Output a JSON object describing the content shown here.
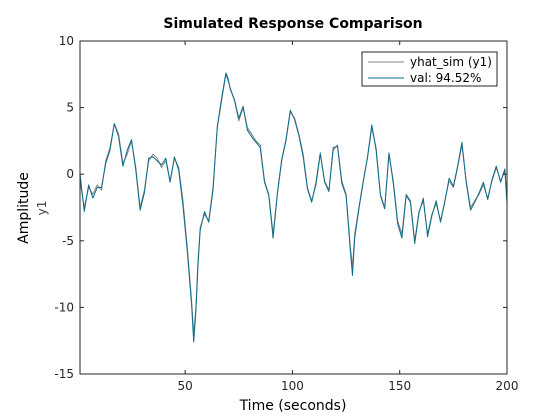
{
  "chart_data": {
    "type": "line",
    "title": "Simulated Response Comparison",
    "xlabel": "Time (seconds)",
    "ylabel": "Amplitude",
    "ylabel_sub": "y1",
    "xlim": [
      1,
      200
    ],
    "ylim": [
      -15,
      10
    ],
    "xticks": [
      50,
      100,
      150,
      200
    ],
    "yticks": [
      -15,
      -10,
      -5,
      0,
      5,
      10
    ],
    "grid": false,
    "legend": {
      "placement": "top-right"
    },
    "series": [
      {
        "name": "yhat_sim (y1)",
        "color": "#808080",
        "x": [
          1,
          3,
          5,
          7,
          9,
          11,
          13,
          15,
          17,
          19,
          21,
          23,
          25,
          27,
          29,
          31,
          33,
          35,
          37,
          39,
          41,
          43,
          45,
          47,
          49,
          51,
          53,
          54,
          55,
          56,
          57,
          59,
          61,
          63,
          65,
          67,
          69,
          70,
          71,
          73,
          75,
          77,
          79,
          81,
          83,
          85,
          87,
          89,
          91,
          93,
          95,
          97,
          99,
          101,
          103,
          105,
          107,
          109,
          111,
          113,
          115,
          117,
          119,
          121,
          123,
          125,
          127,
          128,
          129,
          131,
          133,
          135,
          137,
          139,
          141,
          143,
          145,
          147,
          149,
          151,
          153,
          155,
          157,
          159,
          161,
          163,
          165,
          167,
          169,
          171,
          173,
          175,
          177,
          179,
          181,
          183,
          185,
          187,
          189,
          191,
          193,
          195,
          197,
          199,
          200
        ],
        "y": [
          -0.5,
          -2.5,
          -1.0,
          -1.5,
          -0.8,
          -1.2,
          1.0,
          2.0,
          3.8,
          3.0,
          0.8,
          1.5,
          2.5,
          0.5,
          -2.5,
          -1.2,
          1.0,
          1.5,
          1.2,
          0.5,
          1.0,
          -0.5,
          1.2,
          0.5,
          -2.0,
          -5.5,
          -9.5,
          -12.0,
          -10.0,
          -6.5,
          -4.0,
          -3.0,
          -3.5,
          -1.0,
          3.5,
          5.5,
          7.5,
          7.0,
          6.5,
          5.5,
          4.0,
          5.0,
          3.5,
          3.0,
          2.5,
          2.2,
          -0.5,
          -1.5,
          -4.5,
          -1.5,
          1.0,
          2.5,
          4.7,
          4.2,
          3.0,
          1.5,
          -1.0,
          -2.0,
          -0.8,
          1.5,
          -0.5,
          -1.2,
          1.8,
          2.2,
          -0.5,
          -1.5,
          -5.5,
          -7.0,
          -4.5,
          -2.5,
          -0.5,
          1.2,
          3.5,
          2.0,
          -1.5,
          -2.5,
          1.5,
          -0.5,
          -3.5,
          -4.5,
          -1.5,
          -2.0,
          -5.0,
          -2.8,
          -2.0,
          -4.5,
          -3.0,
          -2.2,
          -3.5,
          -2.0,
          -0.5,
          -1.0,
          0.5,
          2.2,
          -0.5,
          -2.5,
          -2.0,
          -1.5,
          -0.8,
          -1.8,
          -0.5,
          0.5,
          -0.5,
          0.2,
          -2.0
        ]
      },
      {
        "name": "val: 94.52%",
        "color": "#0e6b8a",
        "x": [
          1,
          3,
          5,
          7,
          9,
          11,
          13,
          15,
          17,
          19,
          21,
          23,
          25,
          27,
          29,
          31,
          33,
          35,
          37,
          39,
          41,
          43,
          45,
          47,
          49,
          51,
          53,
          54,
          55,
          56,
          57,
          59,
          61,
          63,
          65,
          67,
          69,
          70,
          71,
          73,
          75,
          77,
          79,
          81,
          83,
          85,
          87,
          89,
          91,
          93,
          95,
          97,
          99,
          101,
          103,
          105,
          107,
          109,
          111,
          113,
          115,
          117,
          119,
          121,
          123,
          125,
          127,
          128,
          129,
          131,
          133,
          135,
          137,
          139,
          141,
          143,
          145,
          147,
          149,
          151,
          153,
          155,
          157,
          159,
          161,
          163,
          165,
          167,
          169,
          171,
          173,
          175,
          177,
          179,
          181,
          183,
          185,
          187,
          189,
          191,
          193,
          195,
          197,
          199,
          200
        ],
        "y": [
          0.0,
          -2.8,
          -0.8,
          -1.8,
          -1.0,
          -1.0,
          0.8,
          1.8,
          3.8,
          2.8,
          0.6,
          1.8,
          2.6,
          0.3,
          -2.7,
          -1.4,
          1.2,
          1.3,
          1.0,
          0.7,
          1.2,
          -0.6,
          1.3,
          0.3,
          -2.4,
          -5.8,
          -9.8,
          -12.6,
          -10.3,
          -6.8,
          -4.2,
          -2.8,
          -3.6,
          -1.2,
          3.6,
          5.7,
          7.6,
          7.2,
          6.4,
          5.6,
          4.2,
          5.1,
          3.3,
          2.8,
          2.4,
          2.0,
          -0.6,
          -1.6,
          -4.8,
          -1.4,
          1.1,
          2.6,
          4.8,
          4.1,
          2.9,
          1.3,
          -1.1,
          -2.1,
          -0.6,
          1.6,
          -0.6,
          -1.3,
          2.0,
          2.1,
          -0.7,
          -1.6,
          -5.8,
          -7.6,
          -4.8,
          -2.6,
          -0.6,
          1.3,
          3.7,
          1.8,
          -1.6,
          -2.6,
          1.6,
          -0.7,
          -3.7,
          -4.8,
          -1.6,
          -2.1,
          -5.2,
          -2.9,
          -1.8,
          -4.7,
          -3.1,
          -2.0,
          -3.6,
          -2.1,
          -0.3,
          -0.9,
          0.6,
          2.4,
          -0.6,
          -2.7,
          -2.1,
          -1.4,
          -0.6,
          -1.9,
          -0.4,
          0.6,
          -0.6,
          0.4,
          -2.2
        ]
      }
    ]
  }
}
